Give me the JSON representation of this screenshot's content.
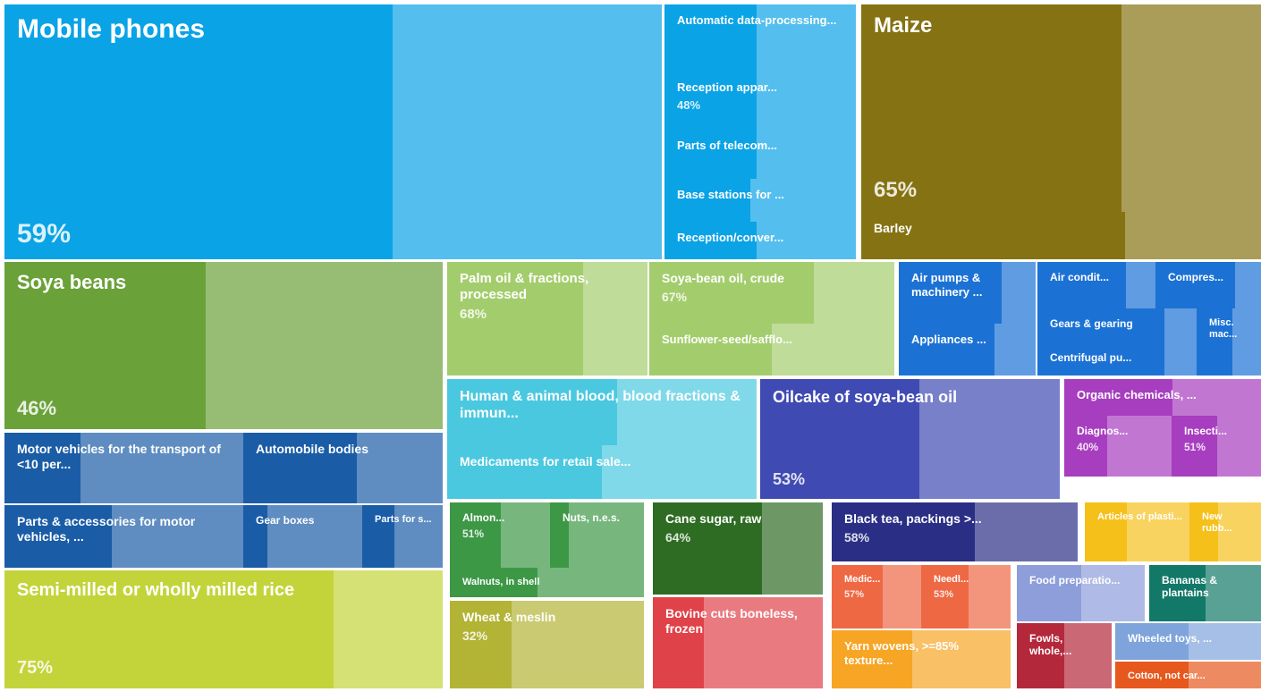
{
  "chart_data": {
    "type": "treemap",
    "tiles": [
      {
        "name": "Mobile phones",
        "value": 59,
        "value_label": "59%",
        "color": "#0aa3e6"
      },
      {
        "name": "Automatic data-processing...",
        "value": 48,
        "color": "#0aa3e6"
      },
      {
        "name": "Reception appar...",
        "value": 48,
        "value_label": "48%",
        "color": "#0aa3e6"
      },
      {
        "name": "Parts of telecom...",
        "value": 48,
        "color": "#0aa3e6"
      },
      {
        "name": "Base stations for ...",
        "value": 45,
        "color": "#0aa3e6"
      },
      {
        "name": "Reception/conver...",
        "value": 48,
        "color": "#0aa3e6"
      },
      {
        "name": "Maize",
        "value": 65,
        "value_label": "65%",
        "color": "#857212"
      },
      {
        "name": "Barley",
        "value": 66,
        "color": "#857212"
      },
      {
        "name": "Soya beans",
        "value": 46,
        "value_label": "46%",
        "color": "#6aa138"
      },
      {
        "name": "Motor vehicles for the transport of <10 per...",
        "value": 32,
        "color": "#1a5ca6"
      },
      {
        "name": "Automobile bodies",
        "value": 57,
        "color": "#1a5ca6"
      },
      {
        "name": "Parts & accessories for motor vehicles, ...",
        "value": 45,
        "color": "#1a5ca6"
      },
      {
        "name": "Gear boxes",
        "value": 20,
        "color": "#1a5ca6"
      },
      {
        "name": "Parts for s...",
        "value": 40,
        "color": "#1a5ca6"
      },
      {
        "name": "Semi-milled or wholly milled rice",
        "value": 75,
        "value_label": "75%",
        "color": "#c3d43a"
      },
      {
        "name": "Palm oil & fractions, processed",
        "value": 68,
        "value_label": "68%",
        "color": "#a3cd6c"
      },
      {
        "name": "Soya-bean oil, crude",
        "value": 67,
        "value_label": "67%",
        "color": "#a3cd6c"
      },
      {
        "name": "Sunflower-seed/safflo...",
        "value": 50,
        "color": "#a3cd6c"
      },
      {
        "name": "Air pumps & machinery ...",
        "value": 75,
        "color": "#1c72d4"
      },
      {
        "name": "Appliances ...",
        "value": 70,
        "color": "#1c72d4"
      },
      {
        "name": "Air condit...",
        "value": 75,
        "color": "#1c72d4"
      },
      {
        "name": "Compres...",
        "value": 75,
        "color": "#1c72d4"
      },
      {
        "name": "Gears & gearing",
        "value": 80,
        "color": "#1c72d4"
      },
      {
        "name": "Misc. mac...",
        "value": 55,
        "color": "#1c72d4"
      },
      {
        "name": "Centrifugal pu...",
        "value": 80,
        "color": "#1c72d4"
      },
      {
        "name": "Human & animal blood, blood fractions & immun...",
        "value": 55,
        "color": "#4ac8e0"
      },
      {
        "name": "Medicaments for retail sale...",
        "value": 50,
        "color": "#4ac8e0"
      },
      {
        "name": "Oilcake of soya-bean oil",
        "value": 53,
        "value_label": "53%",
        "color": "#3f4ab3"
      },
      {
        "name": "Organic chemicals, ...",
        "value": 55,
        "color": "#a73dbf"
      },
      {
        "name": "Diagnos...",
        "value": 40,
        "value_label": "40%",
        "color": "#a73dbf"
      },
      {
        "name": "Insecti...",
        "value": 51,
        "value_label": "51%",
        "color": "#a73dbf"
      },
      {
        "name": "Almon...",
        "value": 51,
        "value_label": "51%",
        "color": "#3d9846"
      },
      {
        "name": "Nuts, n.e.s.",
        "value": 20,
        "color": "#3d9846"
      },
      {
        "name": "Walnuts, in shell",
        "value": 45,
        "color": "#3d9846"
      },
      {
        "name": "Wheat & meslin",
        "value": 32,
        "value_label": "32%",
        "color": "#b3b335"
      },
      {
        "name": "Cane sugar, raw",
        "value": 64,
        "value_label": "64%",
        "color": "#2e6c24"
      },
      {
        "name": "Bovine cuts boneless, frozen",
        "value": 30,
        "color": "#e0424a"
      },
      {
        "name": "Black tea, packings >...",
        "value": 58,
        "value_label": "58%",
        "color": "#2a2e85"
      },
      {
        "name": "Articles of plasti...",
        "value": 40,
        "color": "#f5c01a"
      },
      {
        "name": "New rubb...",
        "value": 40,
        "color": "#f5c01a"
      },
      {
        "name": "Medic...",
        "value": 57,
        "value_label": "57%",
        "color": "#ee6844"
      },
      {
        "name": "Needl...",
        "value": 53,
        "value_label": "53%",
        "color": "#ee6844"
      },
      {
        "name": "Yarn wovens, >=85% texture...",
        "value": 45,
        "color": "#f6a525"
      },
      {
        "name": "Food preparatio...",
        "value": 50,
        "color": "#8d9edb"
      },
      {
        "name": "Bananas & plantains",
        "value": 50,
        "color": "#127868"
      },
      {
        "name": "Fowls, whole,...",
        "value": 50,
        "color": "#b3283a"
      },
      {
        "name": "Wheeled toys, ...",
        "value": 50,
        "color": "#7ea4db"
      },
      {
        "name": "Cotton, not car...",
        "value": 50,
        "color": "#e6581d"
      }
    ]
  }
}
